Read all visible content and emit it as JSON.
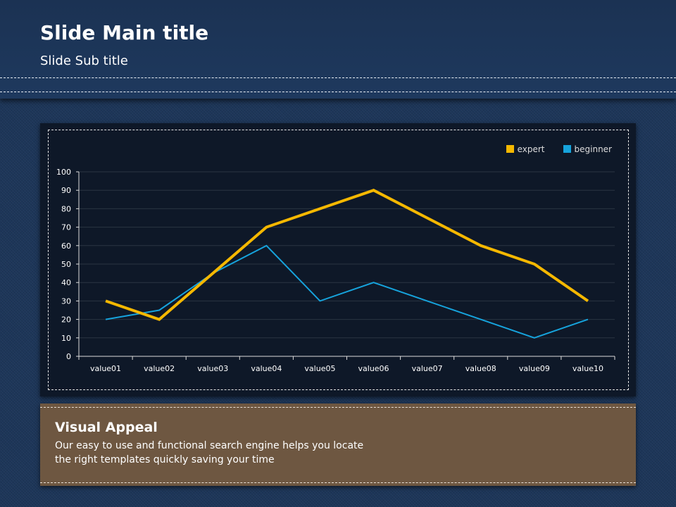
{
  "slide": {
    "title": "Slide Main title",
    "subtitle": "Slide Sub title"
  },
  "info": {
    "title": "Visual Appeal",
    "body_line1": "Our easy to use and functional search engine helps you locate",
    "body_line2": "the right templates quickly saving your time"
  },
  "chart_data": {
    "type": "line",
    "title": "",
    "xlabel": "",
    "ylabel": "",
    "categories": [
      "value01",
      "value02",
      "value03",
      "value04",
      "value05",
      "value06",
      "value07",
      "value08",
      "value09",
      "value10"
    ],
    "series": [
      {
        "name": "expert",
        "color": "#f5b800",
        "values": [
          30,
          20,
          45,
          70,
          80,
          90,
          75,
          60,
          50,
          30
        ]
      },
      {
        "name": "beginner",
        "color": "#16a3dc",
        "values": [
          20,
          25,
          45,
          60,
          30,
          40,
          30,
          20,
          10,
          20
        ]
      }
    ],
    "ylim": [
      0,
      100
    ],
    "yticks": [
      "0",
      "10",
      "20",
      "30",
      "40",
      "50",
      "60",
      "70",
      "80",
      "90",
      "100"
    ],
    "grid": true,
    "legend": "top-right"
  }
}
